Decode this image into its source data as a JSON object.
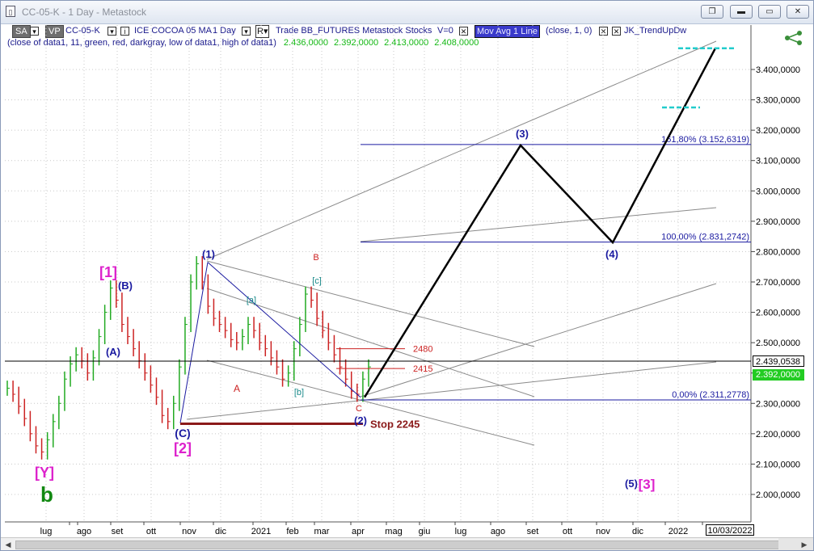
{
  "window": {
    "title": "CC-05-K - 1 Day - Metastock",
    "buttons": [
      "restore-down",
      "minimize",
      "maximize",
      "close"
    ]
  },
  "toolbar": {
    "sa_label": "SA",
    "vp_label": "VP",
    "symbol": "CC-05-K",
    "instrument_name": "ICE COCOA 05 MA",
    "interval": "1 Day",
    "r_label": "R",
    "trade_info": "Trade BB_FUTURES Metastock Stocks",
    "volume_label": "V=0",
    "indicator1": "Mov Avg 1 Line",
    "indicator1_params": "(close, 1, 0)",
    "indicator2": "JK_TrendUpDw"
  },
  "legend": {
    "text": "(close of data1, 11, green, red, darkgray, low of data1, high of data1)",
    "values": [
      "2.436,0000",
      "2.392,0000",
      "2.413,0000",
      "2.408,0000"
    ]
  },
  "chart_data": {
    "type": "line",
    "title": "",
    "xlabel": "",
    "ylabel": "",
    "x_ticks": [
      "lug",
      "ago",
      "set",
      "ott",
      "nov",
      "dic",
      "2021",
      "feb",
      "mar",
      "apr",
      "mag",
      "giu",
      "lug",
      "ago",
      "set",
      "ott",
      "nov",
      "dic",
      "2022"
    ],
    "y_ticks": [
      "3.400,0000",
      "3.300,0000",
      "3.200,0000",
      "3.100,0000",
      "3.000,0000",
      "2.900,0000",
      "2.800,0000",
      "2.700,0000",
      "2.600,0000",
      "2.500,0000",
      "2.400,0000",
      "2.300,0000",
      "2.200,0000",
      "2.100,0000",
      "2.000,0000"
    ],
    "ylim": [
      1950,
      3500
    ],
    "price_marker": "2.439,0538",
    "last_price": "2.392,0000",
    "cursor_date": "10/03/2022",
    "fib_levels": [
      {
        "label": "161,80% (3.152,6319)",
        "value": 3152.6319
      },
      {
        "label": "100,00% (2.831,2742)",
        "value": 2831.2742
      },
      {
        "label": "0,00% (2.311,2778)",
        "value": 2311.2778
      }
    ],
    "price_levels": [
      {
        "label": "2480",
        "value": 2480
      },
      {
        "label": "2415",
        "value": 2415
      }
    ],
    "stop_label": "Stop 2245",
    "wave_labels": [
      {
        "text": "[1]",
        "color": "#dd22cc"
      },
      {
        "text": "(B)",
        "color": "#1a1aa0"
      },
      {
        "text": "(A)",
        "color": "#1a1aa0"
      },
      {
        "text": "(1)",
        "color": "#1a1aa0"
      },
      {
        "text": "[a]",
        "color": "#1a8a8a"
      },
      {
        "text": "B",
        "color": "#cc2222"
      },
      {
        "text": "[c]",
        "color": "#1a8a8a"
      },
      {
        "text": "A",
        "color": "#cc2222"
      },
      {
        "text": "[b]",
        "color": "#1a8a8a"
      },
      {
        "text": "C",
        "color": "#cc2222"
      },
      {
        "text": "(2)",
        "color": "#1a1aa0"
      },
      {
        "text": "(C)",
        "color": "#1a1aa0"
      },
      {
        "text": "[2]",
        "color": "#dd22cc"
      },
      {
        "text": "[Y]",
        "color": "#dd22cc"
      },
      {
        "text": "b",
        "color": "#118811"
      },
      {
        "text": "(3)",
        "color": "#1a1aa0"
      },
      {
        "text": "(4)",
        "color": "#1a1aa0"
      },
      {
        "text": "(5)",
        "color": "#1a1aa0"
      },
      {
        "text": "[3]",
        "color": "#dd22cc"
      }
    ],
    "projection_path": [
      {
        "date": "apr",
        "value": 2320
      },
      {
        "date": "set",
        "value": 3150
      },
      {
        "date": "nov",
        "value": 2830
      },
      {
        "date": "2022",
        "value": 3470
      }
    ],
    "price_series": {
      "color_up": "#22aa22",
      "color_down": "#cc2222",
      "close": [
        2350,
        2330,
        2290,
        2250,
        2200,
        2160,
        2140,
        2180,
        2240,
        2300,
        2380,
        2430,
        2460,
        2440,
        2400,
        2450,
        2520,
        2600,
        2680,
        2640,
        2560,
        2520,
        2480,
        2440,
        2400,
        2360,
        2320,
        2260,
        2240,
        2300,
        2420,
        2560,
        2700,
        2760,
        2700,
        2620,
        2580,
        2560,
        2540,
        2510,
        2500,
        2520,
        2560,
        2540,
        2500,
        2480,
        2450,
        2420,
        2380,
        2400,
        2480,
        2560,
        2660,
        2640,
        2580,
        2540,
        2500,
        2460,
        2420,
        2380,
        2340,
        2330,
        2380,
        2420
      ]
    }
  },
  "colors": {
    "fib_line": "#1a1aa0",
    "channel": "#8a8a8a",
    "projection": "#000000",
    "stop_line": "#8b1a1a",
    "resistance": "#cc2222",
    "target_dash": "#22cccc"
  }
}
